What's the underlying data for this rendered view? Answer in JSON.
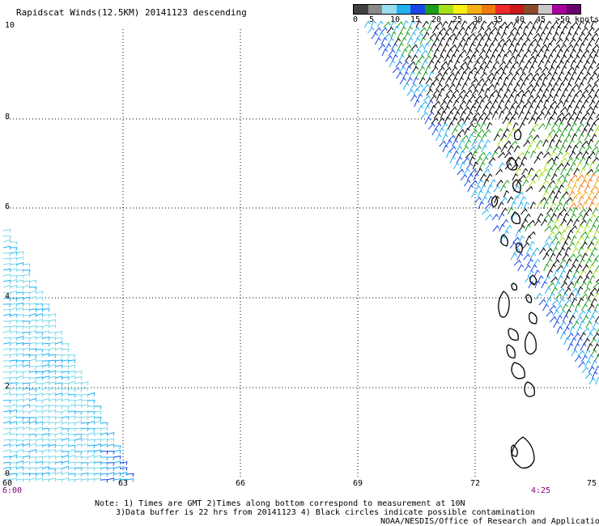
{
  "title": "Rapidscat Winds(12.5KM) 20141123 descending",
  "legend": {
    "colors": [
      "#404040",
      "#8a8a8a",
      "#9adcef",
      "#23b0f0",
      "#1a46e6",
      "#1c9e1c",
      "#a6e01a",
      "#f5f012",
      "#f5b014",
      "#f07a0e",
      "#f02828",
      "#c81818",
      "#8a4a2a",
      "#c8c8c8",
      "#a6009e",
      "#6a006a"
    ],
    "labels": [
      "0",
      "5",
      "10",
      "15",
      "20",
      "25",
      "30",
      "35",
      "40",
      "45",
      ">50 knots"
    ]
  },
  "axes": {
    "y_labels": [
      "10",
      "8",
      "6",
      "4",
      "2",
      "0"
    ],
    "x_labels": [
      "60",
      "63",
      "66",
      "69",
      "72",
      "75"
    ],
    "time_labels": [
      "6:00",
      "4:25"
    ]
  },
  "notes": {
    "line1": "Note: 1) Times are GMT 2)Times along bottom correspond to measurement at 10N",
    "line2": "3)Data buffer is 22 hrs from 20141123 4) Black circles indicate possible contamination",
    "credit": "NOAA/NESDIS/Office of Research and Applications"
  }
}
